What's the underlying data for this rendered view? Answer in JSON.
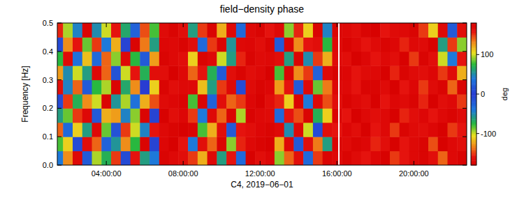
{
  "chart_data": {
    "type": "heatmap",
    "title": "field−density phase",
    "x_label": "C4, 2019−06−01",
    "y_label": "Frequency [Hz]",
    "xlim": [
      1.45,
      22.75
    ],
    "xticks": [
      {
        "value": 4,
        "label": "04:00:00"
      },
      {
        "value": 8,
        "label": "08:00:00"
      },
      {
        "value": 12,
        "label": "12:00:00"
      },
      {
        "value": 16,
        "label": "16:00:00"
      },
      {
        "value": 20,
        "label": "20:00:00"
      }
    ],
    "ylim": [
      0,
      0.5
    ],
    "yticks": [
      {
        "value": 0,
        "label": "0.0"
      },
      0.1,
      0.2,
      0.3,
      0.4,
      0.5
    ],
    "x": [
      1.5,
      2,
      2.5,
      3,
      3.5,
      4,
      4.5,
      5,
      5.5,
      6,
      6.5,
      7,
      7.5,
      8,
      8.5,
      9,
      9.5,
      10,
      10.5,
      11,
      11.5,
      12,
      12.5,
      13,
      13.5,
      14,
      14.5,
      15,
      15.5,
      16,
      16.5,
      17,
      17.5,
      18,
      18.5,
      19,
      19.5,
      20,
      20.5,
      21,
      21.5,
      22,
      22.5
    ],
    "y": [
      0.025,
      0.075,
      0.125,
      0.175,
      0.225,
      0.275,
      0.325,
      0.375,
      0.425,
      0.475
    ],
    "z": [
      [
        40,
        -130,
        170,
        -20,
        95,
        -70,
        150,
        10,
        -160,
        60,
        -40,
        175,
        -170,
        165,
        -150,
        120,
        170,
        -60,
        160,
        30,
        178,
        -165,
        172,
        90,
        -140,
        165,
        -30,
        150,
        -175,
        170,
        175,
        -168,
        160,
        -172,
        178,
        150,
        -160,
        170,
        -175,
        165,
        140,
        -170,
        176
      ],
      [
        -80,
        110,
        -10,
        165,
        -140,
        25,
        -55,
        130,
        75,
        -175,
        5,
        -172,
        178,
        160,
        40,
        -165,
        140,
        175,
        -90,
        155,
        -170,
        175,
        -178,
        -120,
        170,
        20,
        -165,
        135,
        60,
        -175,
        168,
        -175,
        172,
        155,
        -165,
        178,
        160,
        -170,
        175,
        145,
        -178,
        170,
        165
      ],
      [
        140,
        -30,
        -110,
        60,
        170,
        -85,
        15,
        -150,
        100,
        -45,
        160,
        170,
        -175,
        178,
        -175,
        80,
        -120,
        165,
        20,
        -160,
        165,
        -172,
        175,
        170,
        -50,
        -170,
        100,
        -10,
        165,
        160,
        -172,
        165,
        178,
        -160,
        170,
        150,
        -175,
        168,
        -165,
        172,
        178,
        -150,
        160
      ],
      [
        -60,
        85,
        150,
        -170,
        -20,
        120,
        -125,
        45,
        -90,
        175,
        -5,
        178,
        165,
        -172,
        150,
        -40,
        170,
        -140,
        175,
        95,
        -176,
        170,
        168,
        30,
        160,
        -145,
        -175,
        70,
        -110,
        175,
        160,
        -178,
        170,
        165,
        -170,
        178,
        155,
        -165,
        172,
        -160,
        170,
        175,
        -168
      ],
      [
        10,
        -150,
        70,
        130,
        -100,
        -175,
        55,
        95,
        -35,
        -120,
        145,
        -168,
        172,
        175,
        -80,
        175,
        25,
        -165,
        140,
        -150,
        172,
        -178,
        165,
        -155,
        110,
        175,
        -40,
        -170,
        145,
        -165,
        175,
        170,
        -165,
        178,
        160,
        -172,
        168,
        175,
        -155,
        178,
        165,
        -170,
        150
      ],
      [
        165,
        -45,
        -140,
        20,
        75,
        -95,
        175,
        -65,
        130,
        0,
        -110,
        175,
        -165,
        170,
        170,
        -115,
        60,
        150,
        -170,
        10,
        168,
        175,
        -172,
        125,
        -160,
        -20,
        170,
        85,
        -135,
        172,
        -170,
        160,
        175,
        -175,
        168,
        178,
        -160,
        172,
        150,
        -168,
        175,
        140,
        -175
      ],
      [
        -125,
        50,
        100,
        -60,
        -170,
        140,
        -15,
        -100,
        160,
        70,
        -165,
        165,
        178,
        -170,
        -140,
        160,
        -70,
        20,
        165,
        -175,
        -165,
        170,
        178,
        -80,
        175,
        130,
        -150,
        -25,
        170,
        -178,
        172,
        -160,
        168,
        170,
        -178,
        155,
        175,
        -168,
        165,
        172,
        -150,
        168,
        120
      ],
      [
        75,
        -170,
        -35,
        115,
        30,
        -140,
        90,
        170,
        -75,
        -20,
        125,
        -175,
        170,
        165,
        110,
        -175,
        170,
        -100,
        60,
        155,
        175,
        -168,
        170,
        165,
        -60,
        -175,
        50,
        150,
        -120,
        168,
        165,
        178,
        -172,
        160,
        170,
        -165,
        178,
        150,
        -175,
        165,
        100,
        -40,
        -160
      ],
      [
        -10,
        130,
        -160,
        -85,
        150,
        40,
        -120,
        5,
        175,
        -135,
        60,
        172,
        -170,
        175,
        -165,
        30,
        150,
        -175,
        -55,
        170,
        -172,
        165,
        175,
        20,
        175,
        -130,
        160,
        -165,
        75,
        -170,
        -175,
        170,
        160,
        -168,
        175,
        172,
        -155,
        170,
        168,
        -178,
        60,
        150,
        -90
      ],
      [
        155,
        -95,
        45,
        -175,
        -50,
        100,
        -160,
        65,
        -25,
        145,
        -80,
        168,
        175,
        -165,
        60,
        -150,
        175,
        120,
        -170,
        -30,
        170,
        -175,
        160,
        -170,
        90,
        155,
        -110,
        175,
        -45,
        175,
        170,
        -165,
        175,
        178,
        -160,
        168,
        170,
        -175,
        150,
        110,
        -170,
        -20,
        165
      ]
    ],
    "vlines": [
      16.1
    ],
    "colorbar": {
      "range": [
        -180,
        180
      ],
      "ticks": [
        -100,
        0,
        100
      ],
      "label": "deg"
    }
  }
}
